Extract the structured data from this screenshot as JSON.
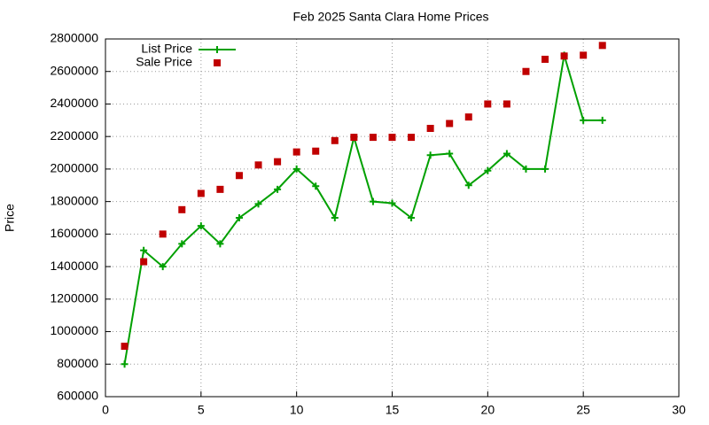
{
  "chart_data": {
    "type": "line",
    "title": "Feb 2025 Santa Clara Home Prices",
    "y_label": "Price",
    "x": [
      1,
      2,
      3,
      4,
      5,
      6,
      7,
      8,
      9,
      10,
      11,
      12,
      13,
      14,
      15,
      16,
      17,
      18,
      19,
      20,
      21,
      22,
      23,
      24,
      25,
      26
    ],
    "series": [
      {
        "name": "List Price",
        "color": "#00a000",
        "style": "linespoints",
        "values": [
          800000,
          1500000,
          1400000,
          1540000,
          1650000,
          1540000,
          1700000,
          1785000,
          1875000,
          2000000,
          1895000,
          1700000,
          2195000,
          1800000,
          1790000,
          1700000,
          2085000,
          2095000,
          1900000,
          1990000,
          2095000,
          2000000,
          2000000,
          2700000,
          2300000,
          2300000
        ]
      },
      {
        "name": "Sale Price",
        "color": "#c00000",
        "style": "points",
        "values": [
          910000,
          1430000,
          1600000,
          1750000,
          1850000,
          1875000,
          1960000,
          2025000,
          2045000,
          2105000,
          2110000,
          2175000,
          2195000,
          2195000,
          2195000,
          2195000,
          2250000,
          2280000,
          2320000,
          2400000,
          2400000,
          2600000,
          2675000,
          2695000,
          2700000,
          2760000
        ]
      }
    ],
    "xlim": [
      0,
      30
    ],
    "xticks": [
      0,
      5,
      10,
      15,
      20,
      25,
      30
    ],
    "ylim": [
      600000,
      2800000
    ],
    "yticks": [
      600000,
      800000,
      1000000,
      1200000,
      1400000,
      1600000,
      1800000,
      2000000,
      2200000,
      2400000,
      2600000,
      2800000
    ],
    "grid": true,
    "legend": "top-left"
  }
}
